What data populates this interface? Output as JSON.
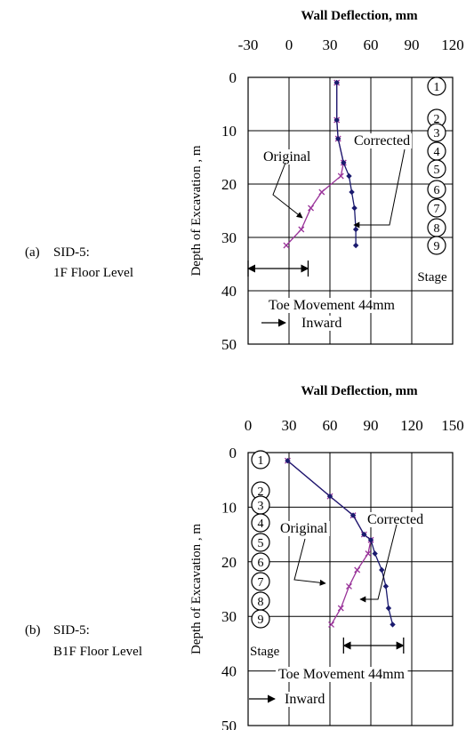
{
  "figure": {
    "charts": [
      {
        "label": "(a)",
        "caption_line1": "SID-5:",
        "caption_line2": "1F Floor Level",
        "x_title": "Wall Deflection, mm",
        "x_ticks": [
          "-30",
          "0",
          "30",
          "60",
          "90",
          "120"
        ],
        "y_title": "Depth of Excavation , m",
        "y_ticks": [
          "0",
          "10",
          "20",
          "30",
          "40",
          "50"
        ],
        "stage_title": "Stage",
        "stages": [
          "1",
          "2",
          "3",
          "4",
          "5",
          "6",
          "7",
          "8",
          "9"
        ],
        "original_label": "Original",
        "corrected_label": "Corrected",
        "toe_label": "Toe Movement 44mm",
        "inward_label": "Inward"
      },
      {
        "label": "(b)",
        "caption_line1": "SID-5:",
        "caption_line2": "B1F Floor Level",
        "x_title": "Wall Deflection, mm",
        "x_ticks": [
          "0",
          "30",
          "60",
          "90",
          "120",
          "150"
        ],
        "y_title": "Depth of Excavation , m",
        "y_ticks": [
          "0",
          "10",
          "20",
          "30",
          "40",
          "50"
        ],
        "stage_title": "Stage",
        "stages": [
          "1",
          "2",
          "3",
          "4",
          "5",
          "6",
          "7",
          "8",
          "9"
        ],
        "original_label": "Original",
        "corrected_label": "Corrected",
        "toe_label": "Toe Movement 44mm",
        "inward_label": "Inward"
      }
    ]
  },
  "chart_data": [
    {
      "type": "line",
      "xlabel": "Wall Deflection, mm",
      "ylabel": "Depth of Excavation , m",
      "xlim": [
        -30,
        120
      ],
      "ylim": [
        0,
        50
      ],
      "y_inverted": true,
      "x_axis_position": "top",
      "grid": true,
      "series": [
        {
          "name": "Original",
          "color": "#993399",
          "marker": "x",
          "points": [
            [
              35,
              1
            ],
            [
              35,
              8
            ],
            [
              36,
              11.5
            ],
            [
              40,
              16
            ],
            [
              38,
              18.5
            ],
            [
              24,
              21.5
            ],
            [
              16,
              24.5
            ],
            [
              9,
              28.5
            ],
            [
              -2,
              31.5
            ]
          ]
        },
        {
          "name": "Corrected",
          "color": "#1a1a6e",
          "marker": "diamond",
          "points": [
            [
              35,
              1
            ],
            [
              35,
              8
            ],
            [
              36,
              11.5
            ],
            [
              40,
              16
            ],
            [
              44,
              18.5
            ],
            [
              46,
              21.5
            ],
            [
              48,
              24.5
            ],
            [
              49,
              28.5
            ],
            [
              49,
              31.5
            ]
          ]
        }
      ],
      "annotations": [
        "Original",
        "Corrected",
        "Toe Movement 44mm",
        "Inward"
      ]
    },
    {
      "type": "line",
      "xlabel": "Wall Deflection, mm",
      "ylabel": "Depth of Excavation , m",
      "xlim": [
        0,
        150
      ],
      "ylim": [
        0,
        50
      ],
      "y_inverted": true,
      "x_axis_position": "top",
      "grid": true,
      "series": [
        {
          "name": "Original",
          "color": "#993399",
          "marker": "x",
          "points": [
            [
              29,
              1.5
            ],
            [
              60,
              8
            ],
            [
              77,
              11.5
            ],
            [
              85,
              15
            ],
            [
              90,
              16
            ],
            [
              88,
              18.5
            ],
            [
              80,
              21.5
            ],
            [
              74,
              24.5
            ],
            [
              68,
              28.5
            ],
            [
              61,
              31.5
            ]
          ]
        },
        {
          "name": "Corrected",
          "color": "#1a1a6e",
          "marker": "diamond",
          "points": [
            [
              29,
              1.5
            ],
            [
              60,
              8
            ],
            [
              77,
              11.5
            ],
            [
              85,
              15
            ],
            [
              90,
              16
            ],
            [
              93,
              18.5
            ],
            [
              98,
              21.5
            ],
            [
              101,
              24.5
            ],
            [
              103,
              28.5
            ],
            [
              106,
              31.5
            ]
          ]
        }
      ],
      "annotations": [
        "Original",
        "Corrected",
        "Toe Movement 44mm",
        "Inward"
      ]
    }
  ]
}
